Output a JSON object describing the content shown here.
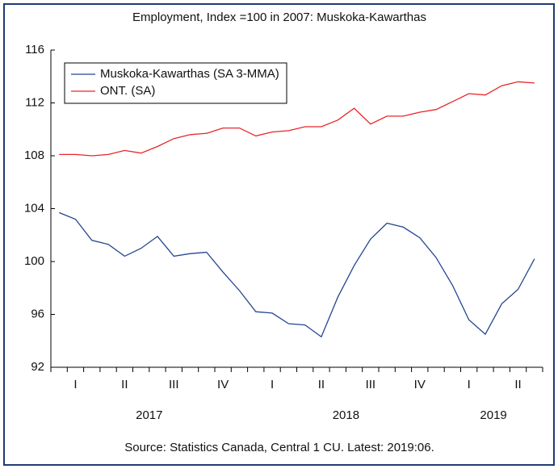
{
  "chart_data": {
    "type": "line",
    "title": "Employment, Index =100 in 2007: Muskoka-Kawarthas",
    "source": "Source: Statistics Canada, Central 1 CU. Latest: 2019:06.",
    "categories": [
      null,
      "I",
      null,
      null,
      "II",
      null,
      null,
      "III",
      null,
      null,
      "IV",
      null,
      null,
      "I",
      null,
      null,
      "II",
      null,
      null,
      "III",
      null,
      null,
      "IV",
      null,
      null,
      "I",
      null,
      null,
      "II",
      null
    ],
    "year_labels": [
      "2017",
      "2018",
      "2019"
    ],
    "series": [
      {
        "name": "Muskoka-Kawarthas (SA 3-MMA)",
        "color": "#24468e",
        "values": [
          103.7,
          103.2,
          101.6,
          101.3,
          100.4,
          101.0,
          101.9,
          100.4,
          100.6,
          100.7,
          99.2,
          97.8,
          96.2,
          96.1,
          95.3,
          95.2,
          94.3,
          97.3,
          99.7,
          101.7,
          102.9,
          102.6,
          101.8,
          100.3,
          98.2,
          95.6,
          94.5,
          96.8,
          97.9,
          100.2
        ]
      },
      {
        "name": "ONT. (SA)",
        "color": "#e8262a",
        "values": [
          108.1,
          108.1,
          108.0,
          108.1,
          108.4,
          108.2,
          108.7,
          109.3,
          109.6,
          109.7,
          110.1,
          110.1,
          109.5,
          109.8,
          109.9,
          110.2,
          110.2,
          110.7,
          111.6,
          110.4,
          111.0,
          111.0,
          111.3,
          111.5,
          112.1,
          112.7,
          112.6,
          113.3,
          113.6,
          113.5
        ]
      }
    ],
    "ylim": [
      92,
      116
    ],
    "yticks": [
      92,
      96,
      100,
      104,
      108,
      112,
      116
    ],
    "grid": false,
    "legend": "upper left"
  }
}
